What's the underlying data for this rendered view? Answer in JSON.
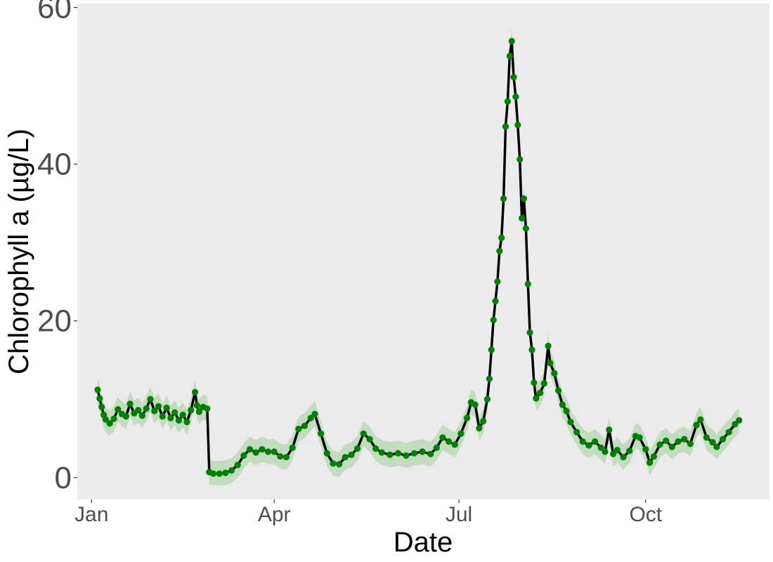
{
  "chart_data": {
    "type": "line",
    "xlabel": "Date",
    "ylabel": "Chlorophyll a (µg/L)",
    "x_ticks": [
      {
        "date": "2019-01-01",
        "label": "Jan"
      },
      {
        "date": "2019-04-01",
        "label": "Apr"
      },
      {
        "date": "2019-07-01",
        "label": "Jul"
      },
      {
        "date": "2019-10-01",
        "label": "Oct"
      }
    ],
    "xlim": [
      "2018-12-25",
      "2019-12-01"
    ],
    "y_ticks": [
      0,
      20,
      40,
      60
    ],
    "ylim": [
      -2.8,
      60.5
    ],
    "grid": false,
    "colors": {
      "panel_background": "#ebebeb",
      "line": "#000000",
      "points": "#008000",
      "band": "#c3dcbf"
    },
    "series": [
      {
        "type": "line_with_band_and_points",
        "band_halfwidth": 1.6,
        "points": [
          [
            "2019-01-04",
            11.2
          ],
          [
            "2019-01-05",
            10.1
          ],
          [
            "2019-01-06",
            9.0
          ],
          [
            "2019-01-07",
            8.0
          ],
          [
            "2019-01-08",
            7.4
          ],
          [
            "2019-01-10",
            6.9
          ],
          [
            "2019-01-12",
            7.5
          ],
          [
            "2019-01-14",
            8.7
          ],
          [
            "2019-01-16",
            8.1
          ],
          [
            "2019-01-18",
            7.8
          ],
          [
            "2019-01-20",
            9.4
          ],
          [
            "2019-01-22",
            8.2
          ],
          [
            "2019-01-24",
            8.6
          ],
          [
            "2019-01-26",
            7.9
          ],
          [
            "2019-01-28",
            8.8
          ],
          [
            "2019-01-30",
            10.0
          ],
          [
            "2019-02-01",
            8.5
          ],
          [
            "2019-02-03",
            9.1
          ],
          [
            "2019-02-05",
            7.8
          ],
          [
            "2019-02-07",
            8.9
          ],
          [
            "2019-02-09",
            7.6
          ],
          [
            "2019-02-11",
            8.3
          ],
          [
            "2019-02-13",
            7.3
          ],
          [
            "2019-02-15",
            8.0
          ],
          [
            "2019-02-17",
            7.1
          ],
          [
            "2019-02-19",
            8.6
          ],
          [
            "2019-02-21",
            10.9
          ],
          [
            "2019-02-22",
            9.2
          ],
          [
            "2019-02-23",
            8.4
          ],
          [
            "2019-02-25",
            9.0
          ],
          [
            "2019-02-27",
            8.8
          ],
          [
            "2019-02-28",
            0.7
          ],
          [
            "2019-03-02",
            0.5
          ],
          [
            "2019-03-05",
            0.5
          ],
          [
            "2019-03-08",
            0.6
          ],
          [
            "2019-03-11",
            0.9
          ],
          [
            "2019-03-14",
            1.6
          ],
          [
            "2019-03-17",
            2.8
          ],
          [
            "2019-03-20",
            3.6
          ],
          [
            "2019-03-23",
            3.2
          ],
          [
            "2019-03-26",
            3.6
          ],
          [
            "2019-03-29",
            3.3
          ],
          [
            "2019-04-01",
            3.3
          ],
          [
            "2019-04-04",
            2.7
          ],
          [
            "2019-04-07",
            2.6
          ],
          [
            "2019-04-10",
            3.8
          ],
          [
            "2019-04-13",
            6.2
          ],
          [
            "2019-04-16",
            6.6
          ],
          [
            "2019-04-19",
            7.6
          ],
          [
            "2019-04-21",
            8.1
          ],
          [
            "2019-04-24",
            5.6
          ],
          [
            "2019-04-27",
            3.1
          ],
          [
            "2019-04-30",
            1.8
          ],
          [
            "2019-05-03",
            1.7
          ],
          [
            "2019-05-06",
            2.6
          ],
          [
            "2019-05-09",
            2.9
          ],
          [
            "2019-05-12",
            3.7
          ],
          [
            "2019-05-15",
            5.6
          ],
          [
            "2019-05-18",
            4.9
          ],
          [
            "2019-05-21",
            3.7
          ],
          [
            "2019-05-24",
            3.2
          ],
          [
            "2019-05-28",
            2.9
          ],
          [
            "2019-06-01",
            3.1
          ],
          [
            "2019-06-05",
            2.8
          ],
          [
            "2019-06-09",
            3.1
          ],
          [
            "2019-06-13",
            3.3
          ],
          [
            "2019-06-17",
            3.0
          ],
          [
            "2019-06-20",
            3.8
          ],
          [
            "2019-06-23",
            5.1
          ],
          [
            "2019-06-26",
            4.6
          ],
          [
            "2019-06-29",
            4.2
          ],
          [
            "2019-07-02",
            5.6
          ],
          [
            "2019-07-05",
            7.6
          ],
          [
            "2019-07-07",
            9.6
          ],
          [
            "2019-07-09",
            9.3
          ],
          [
            "2019-07-11",
            6.3
          ],
          [
            "2019-07-13",
            7.2
          ],
          [
            "2019-07-15",
            10.0
          ],
          [
            "2019-07-16",
            12.6
          ],
          [
            "2019-07-17",
            16.3
          ],
          [
            "2019-07-18",
            20.1
          ],
          [
            "2019-07-19",
            22.5
          ],
          [
            "2019-07-20",
            25.0
          ],
          [
            "2019-07-21",
            28.9
          ],
          [
            "2019-07-22",
            30.6
          ],
          [
            "2019-07-23",
            35.6
          ],
          [
            "2019-07-24",
            44.8
          ],
          [
            "2019-07-25",
            48.0
          ],
          [
            "2019-07-26",
            53.8
          ],
          [
            "2019-07-27",
            55.7
          ],
          [
            "2019-07-28",
            51.1
          ],
          [
            "2019-07-29",
            48.6
          ],
          [
            "2019-07-30",
            45.0
          ],
          [
            "2019-07-31",
            40.6
          ],
          [
            "2019-08-01",
            33.1
          ],
          [
            "2019-08-02",
            35.6
          ],
          [
            "2019-08-03",
            31.8
          ],
          [
            "2019-08-04",
            24.7
          ],
          [
            "2019-08-05",
            18.5
          ],
          [
            "2019-08-06",
            16.3
          ],
          [
            "2019-08-07",
            12.1
          ],
          [
            "2019-08-08",
            10.1
          ],
          [
            "2019-08-10",
            10.8
          ],
          [
            "2019-08-12",
            12.0
          ],
          [
            "2019-08-14",
            16.8
          ],
          [
            "2019-08-15",
            14.6
          ],
          [
            "2019-08-17",
            13.3
          ],
          [
            "2019-08-19",
            11.1
          ],
          [
            "2019-08-21",
            9.3
          ],
          [
            "2019-08-23",
            8.5
          ],
          [
            "2019-08-25",
            7.1
          ],
          [
            "2019-08-28",
            5.8
          ],
          [
            "2019-08-31",
            4.6
          ],
          [
            "2019-09-03",
            4.1
          ],
          [
            "2019-09-06",
            4.6
          ],
          [
            "2019-09-09",
            3.8
          ],
          [
            "2019-09-11",
            3.3
          ],
          [
            "2019-09-13",
            6.1
          ],
          [
            "2019-09-15",
            3.0
          ],
          [
            "2019-09-17",
            3.5
          ],
          [
            "2019-09-20",
            2.6
          ],
          [
            "2019-09-23",
            3.4
          ],
          [
            "2019-09-26",
            5.3
          ],
          [
            "2019-09-28",
            5.1
          ],
          [
            "2019-10-01",
            3.6
          ],
          [
            "2019-10-03",
            1.9
          ],
          [
            "2019-10-05",
            2.7
          ],
          [
            "2019-10-08",
            4.2
          ],
          [
            "2019-10-11",
            4.7
          ],
          [
            "2019-10-14",
            3.9
          ],
          [
            "2019-10-17",
            4.6
          ],
          [
            "2019-10-20",
            4.9
          ],
          [
            "2019-10-23",
            4.3
          ],
          [
            "2019-10-26",
            6.7
          ],
          [
            "2019-10-28",
            7.4
          ],
          [
            "2019-10-31",
            5.1
          ],
          [
            "2019-11-03",
            4.5
          ],
          [
            "2019-11-05",
            3.9
          ],
          [
            "2019-11-08",
            4.9
          ],
          [
            "2019-11-11",
            5.8
          ],
          [
            "2019-11-14",
            6.8
          ],
          [
            "2019-11-16",
            7.3
          ]
        ]
      }
    ]
  }
}
